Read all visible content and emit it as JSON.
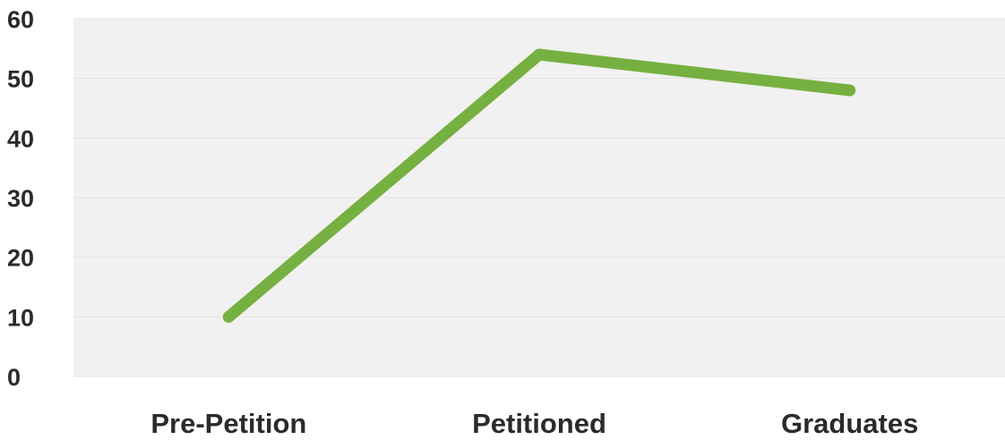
{
  "chart_data": {
    "type": "line",
    "categories": [
      "Pre-Petition",
      "Petitioned",
      "Graduates"
    ],
    "series": [
      {
        "values": [
          10,
          54,
          48
        ]
      }
    ],
    "ylim": [
      0,
      60
    ],
    "yticks": [
      "0",
      "10",
      "20",
      "30",
      "40",
      "50",
      "60"
    ],
    "grid": true,
    "legend": "none",
    "colors": {
      "line": "#76b041",
      "plot_background": "#f1f1f1",
      "gridline": "#e2e2e2",
      "text": "#2b2b2b"
    }
  }
}
